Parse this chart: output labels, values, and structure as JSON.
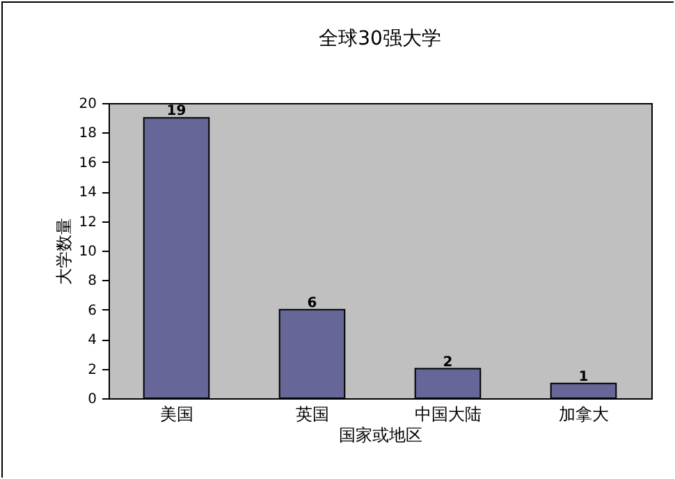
{
  "chart_data": {
    "type": "bar",
    "title": "全球30强大学",
    "xlabel": "国家或地区",
    "ylabel": "大学数量",
    "categories": [
      "美国",
      "英国",
      "中国大陆",
      "加拿大"
    ],
    "values": [
      19,
      6,
      2,
      1
    ],
    "color": "#666699",
    "ylim": [
      0,
      20
    ],
    "yticks": [
      0,
      2,
      4,
      6,
      8,
      10,
      12,
      14,
      16,
      18,
      20
    ],
    "grid": false,
    "data_labels": true
  }
}
